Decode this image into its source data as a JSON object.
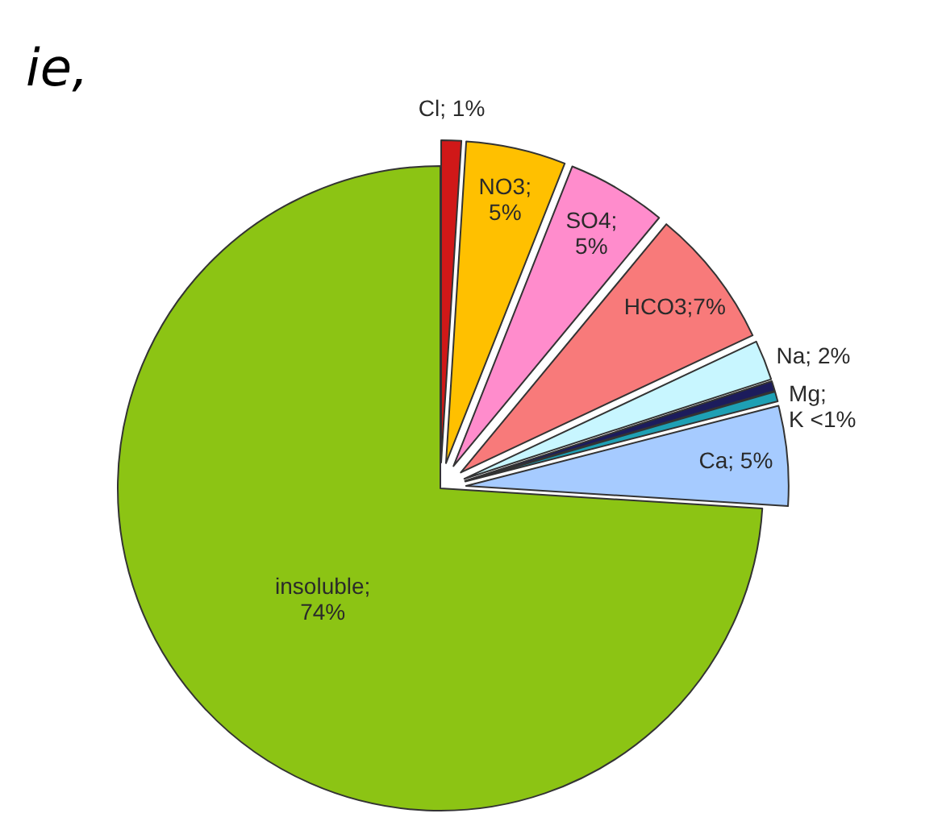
{
  "chart_data": {
    "type": "pie",
    "categories": [
      "Cl; 1%",
      "NO3;\n5%",
      "SO4;\n5%",
      "HCO3;7%",
      "Na; 2%",
      null,
      "Mg;\nK <1%",
      "Ca; 5%",
      "insoluble;\n74%"
    ],
    "values": [
      1,
      5,
      5,
      7,
      2,
      0.5,
      0.5,
      5,
      74
    ],
    "colors": [
      "#d01818",
      "#ffc000",
      "#ff8ccc",
      "#f87a7a",
      "#c8f6ff",
      "#1c1c5c",
      "#1ea0b4",
      "#a6cbff",
      "#8cc414"
    ],
    "annotations": [
      "ie,"
    ]
  }
}
